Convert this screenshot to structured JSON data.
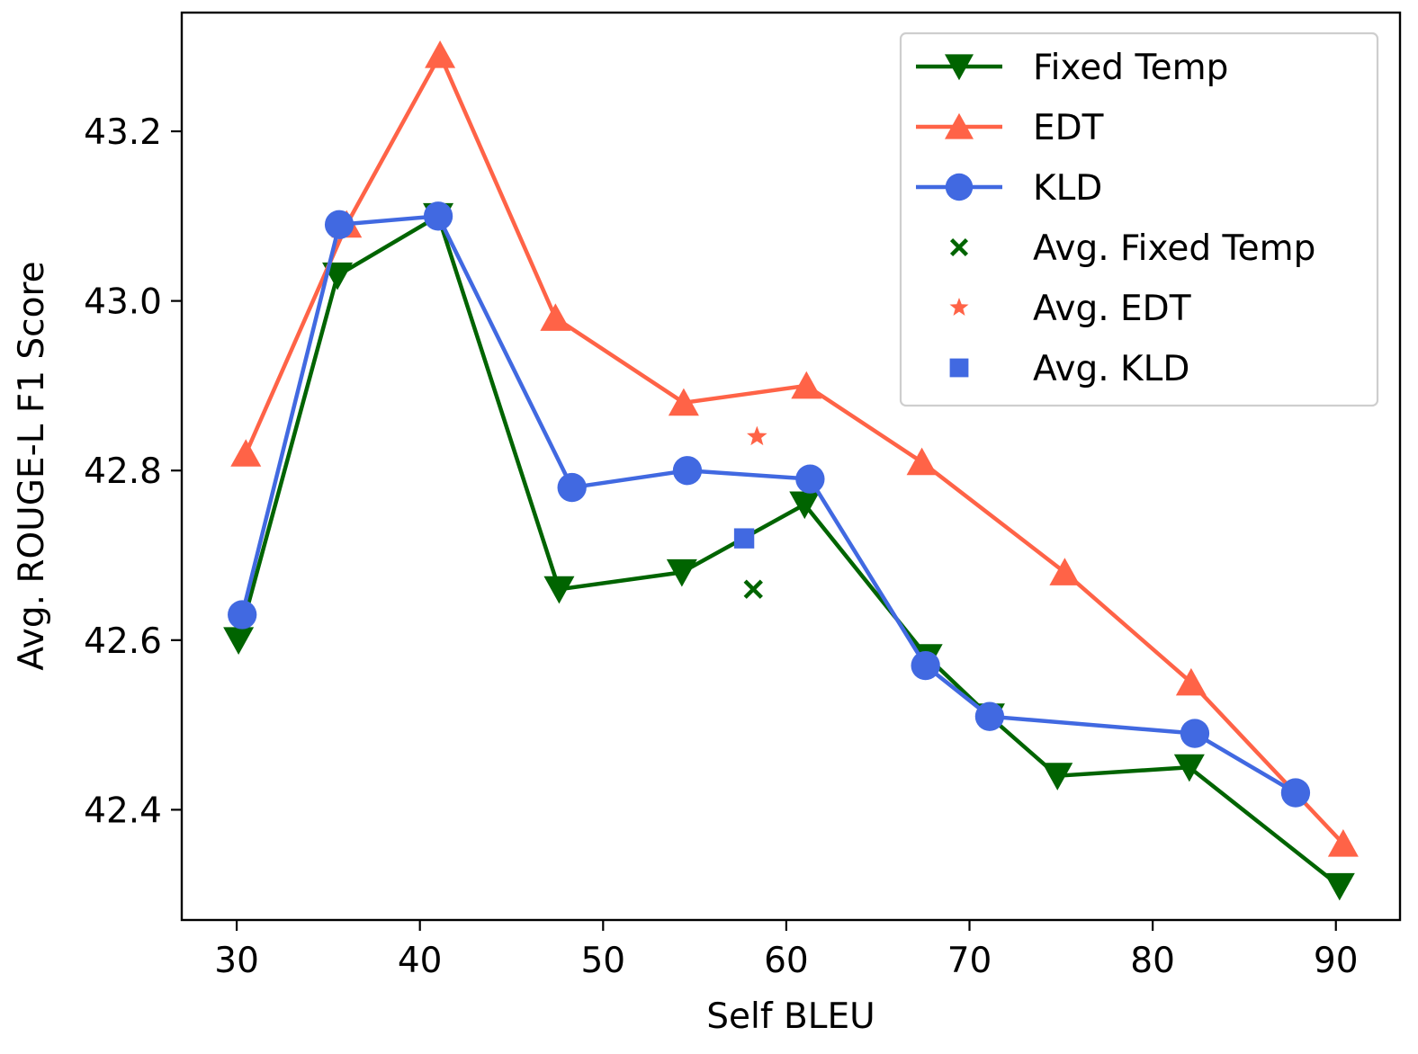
{
  "chart_data": {
    "type": "line",
    "xlabel": "Self BLEU",
    "ylabel": "Avg. ROUGE-L F1 Score",
    "xlim": [
      27,
      93.5
    ],
    "ylim": [
      42.27,
      43.34
    ],
    "xticks": [
      30,
      40,
      50,
      60,
      70,
      80,
      90
    ],
    "xtick_labels": [
      "30",
      "40",
      "50",
      "60",
      "70",
      "80",
      "90"
    ],
    "yticks": [
      42.4,
      42.6,
      42.8,
      43.0,
      43.2
    ],
    "ytick_labels": [
      "42.4",
      "42.6",
      "42.8",
      "43.0",
      "43.2"
    ],
    "grid": false,
    "legend_position": "top-right",
    "series": [
      {
        "name": "Fixed Temp",
        "color": "#006400",
        "marker": "triangle-down",
        "x": [
          30.1,
          35.5,
          41.0,
          47.6,
          54.3,
          61.0,
          67.7,
          71.1,
          74.8,
          82.0,
          90.2
        ],
        "y": [
          42.6,
          43.03,
          43.1,
          42.66,
          42.68,
          42.76,
          42.58,
          42.51,
          42.44,
          42.45,
          42.31
        ]
      },
      {
        "name": "EDT",
        "color": "#FF6347",
        "marker": "triangle-up",
        "x": [
          30.5,
          36.0,
          41.1,
          47.4,
          54.4,
          61.1,
          67.4,
          75.2,
          82.1,
          90.4
        ],
        "y": [
          42.82,
          43.09,
          43.29,
          42.98,
          42.88,
          42.9,
          42.81,
          42.68,
          42.55,
          42.36
        ]
      },
      {
        "name": "KLD",
        "color": "#4169E1",
        "marker": "circle",
        "x": [
          30.3,
          35.6,
          41.0,
          48.3,
          54.6,
          61.3,
          67.6,
          71.1,
          82.3,
          87.8
        ],
        "y": [
          42.63,
          43.09,
          43.1,
          42.78,
          42.8,
          42.79,
          42.57,
          42.51,
          42.49,
          42.42
        ]
      },
      {
        "name": "Avg. Fixed Temp",
        "color": "#006400",
        "marker": "x",
        "x": [
          58.2
        ],
        "y": [
          42.66
        ]
      },
      {
        "name": "Avg. EDT",
        "color": "#FF6347",
        "marker": "star",
        "x": [
          58.4
        ],
        "y": [
          42.84
        ]
      },
      {
        "name": "Avg. KLD",
        "color": "#4169E1",
        "marker": "square",
        "x": [
          57.7
        ],
        "y": [
          42.72
        ]
      }
    ]
  }
}
